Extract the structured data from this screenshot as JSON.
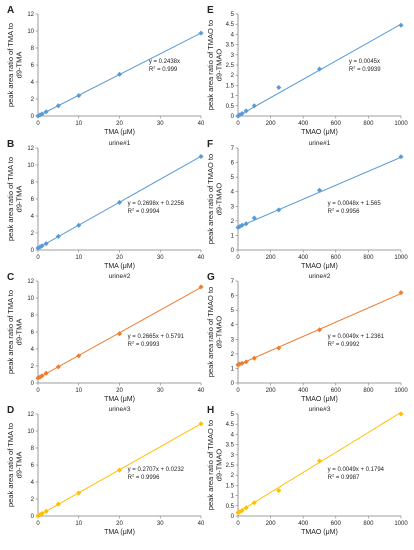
{
  "colors": {
    "blue": "#5B9BD5",
    "orange": "#ED7D31",
    "yellow": "#FFC000"
  },
  "chart_data": [
    {
      "type": "scatter",
      "panel": "A",
      "subtitle": "",
      "xlabel": "TMA (μM)",
      "ylabel": "peak area ratio of TMA to d9-TMA",
      "xlim": [
        0,
        40
      ],
      "ylim": [
        0,
        12
      ],
      "xticks": [
        0,
        10,
        20,
        30,
        40
      ],
      "yticks": [
        0,
        2,
        4,
        6,
        8,
        10,
        12
      ],
      "points": [
        [
          0,
          0
        ],
        [
          0.5,
          0.12
        ],
        [
          1,
          0.24
        ],
        [
          2,
          0.49
        ],
        [
          5,
          1.2
        ],
        [
          10,
          2.4
        ],
        [
          20,
          4.9
        ],
        [
          40,
          9.75
        ]
      ],
      "fit": {
        "slope": 0.2438,
        "intercept": 0
      },
      "equation": "y = 0.2438x",
      "r2_label": "R",
      "r2_sup": "2",
      "r2_value": " = 0.999",
      "color": "blue"
    },
    {
      "type": "scatter",
      "panel": "B",
      "subtitle": "urine#1",
      "xlabel": "TMA (μM)",
      "ylabel": "peak area ratio of TMA to d9-TMA",
      "xlim": [
        0,
        40
      ],
      "ylim": [
        0,
        12
      ],
      "xticks": [
        0,
        10,
        20,
        30,
        40
      ],
      "yticks": [
        0,
        2,
        4,
        6,
        8,
        10,
        12
      ],
      "points": [
        [
          0,
          0.23
        ],
        [
          0.5,
          0.36
        ],
        [
          1,
          0.5
        ],
        [
          2,
          0.75
        ],
        [
          5,
          1.6
        ],
        [
          10,
          2.9
        ],
        [
          20,
          5.6
        ],
        [
          40,
          11.0
        ]
      ],
      "fit": {
        "slope": 0.2698,
        "intercept": 0.2256
      },
      "equation": "y = 0.2698x + 0.2256",
      "r2_label": "R",
      "r2_sup": "2",
      "r2_value": " = 0.9994",
      "color": "blue"
    },
    {
      "type": "scatter",
      "panel": "C",
      "subtitle": "urine#2",
      "xlabel": "TMA (μM)",
      "ylabel": "peak area ratio of TMA to d9-TMA",
      "xlim": [
        0,
        40
      ],
      "ylim": [
        0,
        12
      ],
      "xticks": [
        0,
        10,
        20,
        30,
        40
      ],
      "yticks": [
        0,
        2,
        4,
        6,
        8,
        10,
        12
      ],
      "points": [
        [
          0,
          0.6
        ],
        [
          0.5,
          0.7
        ],
        [
          1,
          0.85
        ],
        [
          2,
          1.15
        ],
        [
          5,
          1.9
        ],
        [
          10,
          3.2
        ],
        [
          20,
          5.8
        ],
        [
          40,
          11.3
        ]
      ],
      "fit": {
        "slope": 0.2665,
        "intercept": 0.5791
      },
      "equation": "y = 0.2665x + 0.5791",
      "r2_label": "R",
      "r2_sup": "2",
      "r2_value": " = 0.9993",
      "color": "orange"
    },
    {
      "type": "scatter",
      "panel": "D",
      "subtitle": "urine#3",
      "xlabel": "TMA (μM)",
      "ylabel": "peak area ratio of TMA to d9-TMA",
      "xlim": [
        0,
        40
      ],
      "ylim": [
        0,
        12
      ],
      "xticks": [
        0,
        10,
        20,
        30,
        40
      ],
      "yticks": [
        0,
        2,
        4,
        6,
        8,
        10,
        12
      ],
      "points": [
        [
          0,
          0.02
        ],
        [
          0.5,
          0.15
        ],
        [
          1,
          0.3
        ],
        [
          2,
          0.55
        ],
        [
          5,
          1.4
        ],
        [
          10,
          2.7
        ],
        [
          20,
          5.4
        ],
        [
          40,
          10.85
        ]
      ],
      "fit": {
        "slope": 0.2707,
        "intercept": 0.0232
      },
      "equation": "y = 0.2707x + 0.0232",
      "r2_label": "R",
      "r2_sup": "2",
      "r2_value": " = 0.9996",
      "color": "yellow"
    },
    {
      "type": "scatter",
      "panel": "E",
      "subtitle": "",
      "xlabel": "TMAO (μM)",
      "ylabel": "peak area ratio of TMAO to d9-TMAO",
      "xlim": [
        0,
        1000
      ],
      "ylim": [
        0,
        5
      ],
      "xticks": [
        0,
        200,
        400,
        600,
        800,
        1000
      ],
      "yticks": [
        0,
        0.5,
        1,
        1.5,
        2,
        2.5,
        3,
        3.5,
        4,
        4.5,
        5
      ],
      "points": [
        [
          0,
          0
        ],
        [
          10,
          0.05
        ],
        [
          25,
          0.12
        ],
        [
          50,
          0.25
        ],
        [
          100,
          0.5
        ],
        [
          250,
          1.4
        ],
        [
          500,
          2.3
        ],
        [
          1000,
          4.45
        ]
      ],
      "fit": {
        "slope": 0.0045,
        "intercept": 0
      },
      "equation": "y = 0.0045x",
      "r2_label": "R",
      "r2_sup": "2",
      "r2_value": " = 0.9939",
      "color": "blue"
    },
    {
      "type": "scatter",
      "panel": "F",
      "subtitle": "urine#1",
      "xlabel": "TMAO (μM)",
      "ylabel": "peak area ratio of TMAO to d9-TMAO",
      "xlim": [
        0,
        1000
      ],
      "ylim": [
        0,
        7
      ],
      "xticks": [
        0,
        200,
        400,
        600,
        800,
        1000
      ],
      "yticks": [
        0,
        1,
        2,
        3,
        4,
        5,
        6,
        7
      ],
      "points": [
        [
          0,
          1.55
        ],
        [
          10,
          1.6
        ],
        [
          25,
          1.7
        ],
        [
          50,
          1.8
        ],
        [
          100,
          2.2
        ],
        [
          250,
          2.75
        ],
        [
          500,
          4.1
        ],
        [
          1000,
          6.4
        ]
      ],
      "fit": {
        "slope": 0.0048,
        "intercept": 1.565
      },
      "equation": "y = 0.0048x + 1.565",
      "r2_label": "R",
      "r2_sup": "2",
      "r2_value": " = 0.9956",
      "color": "blue"
    },
    {
      "type": "scatter",
      "panel": "G",
      "subtitle": "urine#2",
      "xlabel": "TMAO (μM)",
      "ylabel": "peak area ratio of TMAO to d9-TMAO",
      "xlim": [
        0,
        1000
      ],
      "ylim": [
        0,
        7
      ],
      "xticks": [
        0,
        200,
        400,
        600,
        800,
        1000
      ],
      "yticks": [
        0,
        1,
        2,
        3,
        4,
        5,
        6,
        7
      ],
      "points": [
        [
          0,
          1.25
        ],
        [
          10,
          1.3
        ],
        [
          25,
          1.35
        ],
        [
          50,
          1.45
        ],
        [
          100,
          1.7
        ],
        [
          250,
          2.4
        ],
        [
          500,
          3.65
        ],
        [
          1000,
          6.2
        ]
      ],
      "fit": {
        "slope": 0.0049,
        "intercept": 1.2361
      },
      "equation": "y = 0.0049x + 1.2361",
      "r2_label": "R",
      "r2_sup": "2",
      "r2_value": " = 0.9992",
      "color": "orange"
    },
    {
      "type": "scatter",
      "panel": "H",
      "subtitle": "urine#3",
      "xlabel": "TMAO (μM)",
      "ylabel": "peak area ratio of TMAO to d9-TMAO",
      "xlim": [
        0,
        1000
      ],
      "ylim": [
        0,
        5
      ],
      "xticks": [
        0,
        200,
        400,
        600,
        800,
        1000
      ],
      "yticks": [
        0,
        0.5,
        1,
        1.5,
        2,
        2.5,
        3,
        3.5,
        4,
        4.5,
        5
      ],
      "points": [
        [
          0,
          0.17
        ],
        [
          10,
          0.2
        ],
        [
          25,
          0.27
        ],
        [
          50,
          0.4
        ],
        [
          100,
          0.65
        ],
        [
          250,
          1.25
        ],
        [
          500,
          2.7
        ],
        [
          1000,
          5.0
        ]
      ],
      "fit": {
        "slope": 0.0049,
        "intercept": 0.1794
      },
      "equation": "y = 0.0049x + 0.1794",
      "r2_label": "R",
      "r2_sup": "2",
      "r2_value": " = 0.9987",
      "color": "yellow"
    }
  ]
}
